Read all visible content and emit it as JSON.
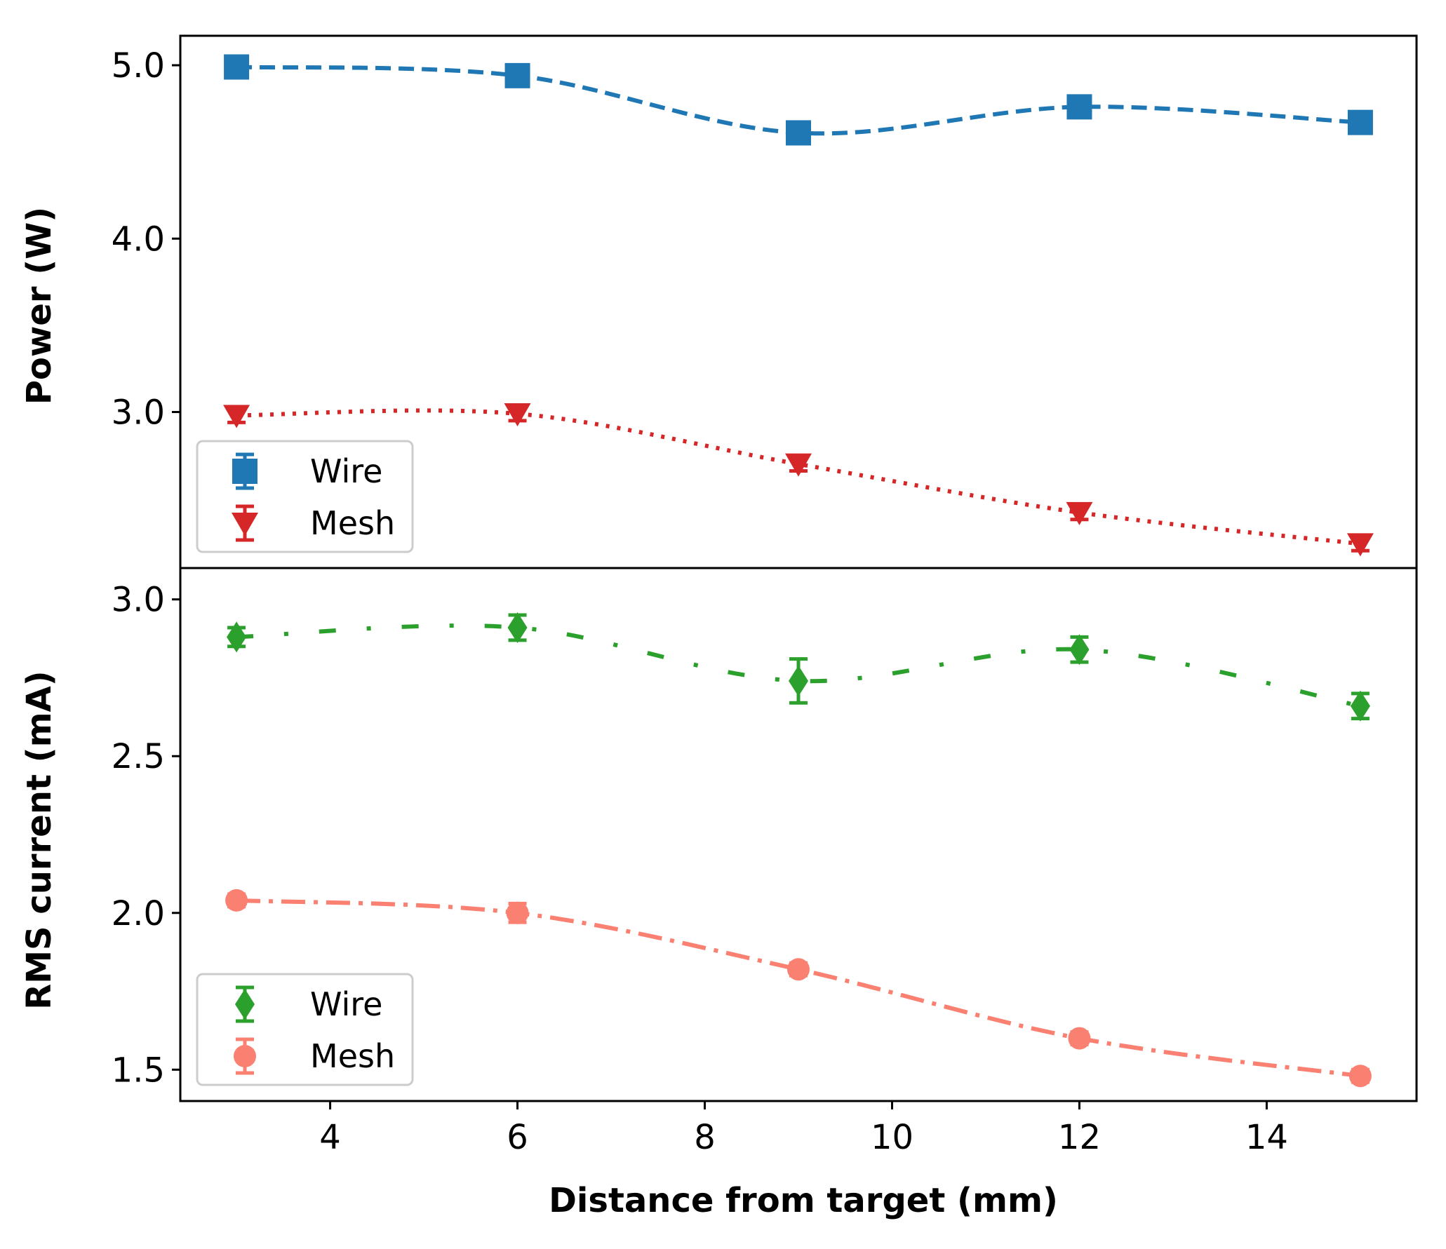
{
  "chart_data": [
    {
      "type": "line",
      "panel": "top",
      "ylabel": "Power (W)",
      "xlabel": "",
      "xlim": [
        2.4,
        15.6
      ],
      "ylim": [
        2.1,
        5.17
      ],
      "yticks": [
        3.0,
        4.0,
        5.0
      ],
      "ytick_labels": [
        "3.0",
        "4.0",
        "5.0"
      ],
      "x": [
        3,
        6,
        9,
        12,
        15
      ],
      "series": [
        {
          "name": "Wire",
          "color": "#1f77b4",
          "marker": "square",
          "linestyle": "dashed",
          "values": [
            4.99,
            4.94,
            4.61,
            4.76,
            4.67
          ],
          "errors": [
            0.03,
            0.03,
            0.03,
            0.03,
            0.03
          ]
        },
        {
          "name": "Mesh",
          "color": "#d62728",
          "marker": "triangle-down",
          "linestyle": "dotted",
          "values": [
            2.98,
            2.99,
            2.7,
            2.42,
            2.24
          ],
          "errors": [
            0.04,
            0.04,
            0.04,
            0.04,
            0.04
          ]
        }
      ],
      "legend": {
        "location": "lower-left",
        "entries": [
          "Wire",
          "Mesh"
        ]
      }
    },
    {
      "type": "line",
      "panel": "bottom",
      "ylabel": "RMS current (mA)",
      "xlabel": "Distance from target (mm)",
      "xlim": [
        2.4,
        15.6
      ],
      "ylim": [
        1.4,
        3.1
      ],
      "xticks": [
        4,
        6,
        8,
        10,
        12,
        14
      ],
      "xtick_labels": [
        "4",
        "6",
        "8",
        "10",
        "12",
        "14"
      ],
      "yticks": [
        1.5,
        2.0,
        2.5,
        3.0
      ],
      "ytick_labels": [
        "1.5",
        "2.0",
        "2.5",
        "3.0"
      ],
      "x": [
        3,
        6,
        9,
        12,
        15
      ],
      "series": [
        {
          "name": "Wire",
          "color": "#2ca02c",
          "marker": "diamond",
          "linestyle": "dashdot-sparse",
          "values": [
            2.88,
            2.91,
            2.74,
            2.84,
            2.66
          ],
          "errors": [
            0.03,
            0.04,
            0.07,
            0.04,
            0.04
          ]
        },
        {
          "name": "Mesh",
          "color": "#fa8072",
          "marker": "circle",
          "linestyle": "dashdot",
          "values": [
            2.04,
            2.0,
            1.82,
            1.6,
            1.48
          ],
          "errors": [
            0.02,
            0.03,
            0.02,
            0.02,
            0.02
          ]
        }
      ],
      "legend": {
        "location": "lower-left",
        "entries": [
          "Wire",
          "Mesh"
        ]
      }
    }
  ]
}
